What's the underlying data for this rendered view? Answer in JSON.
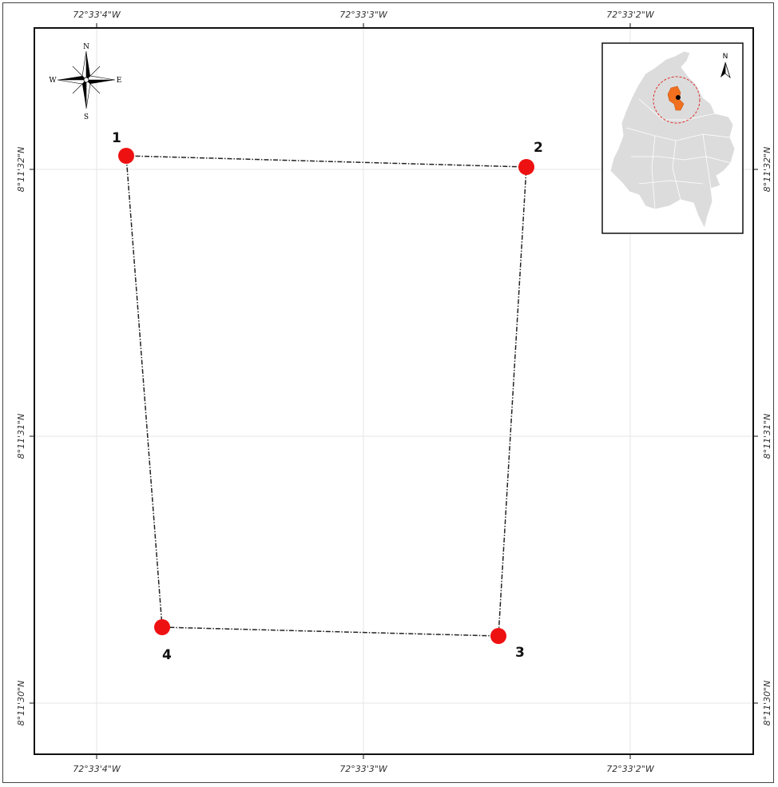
{
  "graticule": {
    "top_longitudes": [
      "72°33'4\"W",
      "72°33'3\"W",
      "72°33'2\"W"
    ],
    "bottom_longitudes": [
      "72°33'4\"W",
      "72°33'3\"W",
      "72°33'2\"W"
    ],
    "left_latitudes": [
      "8°11'32\"N",
      "8°11'31\"N",
      "8°11'30\"N"
    ],
    "right_latitudes": [
      "8°11'32\"N",
      "8°11'31\"N",
      "8°11'30\"N"
    ]
  },
  "points": [
    {
      "label": "1",
      "lon": "72°33'3.88\"W",
      "lat": "8°11'32.05\"N"
    },
    {
      "label": "2",
      "lon": "72°33'2.38\"W",
      "lat": "8°11'32.00\"N"
    },
    {
      "label": "3",
      "lon": "72°33'2.48\"W",
      "lat": "8°11'30.25\"N"
    },
    {
      "label": "4",
      "lon": "72°33'3.75\"W",
      "lat": "8°11'30.28\"N"
    }
  ],
  "compass": {
    "north": "N",
    "south": "S",
    "east": "E",
    "west": "W"
  },
  "inset": {
    "north_label": "N",
    "highlight_color": "#f07020"
  },
  "colors": {
    "point_fill": "#ee1111",
    "boundary": "#222222",
    "grid": "#e6e6e6"
  }
}
